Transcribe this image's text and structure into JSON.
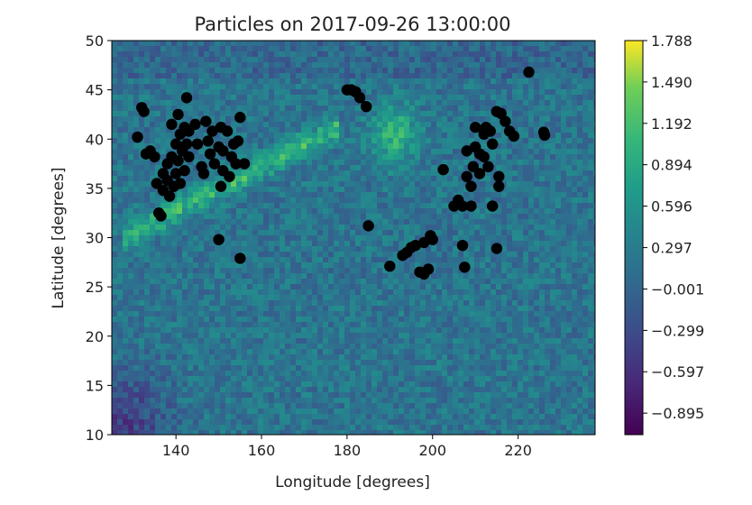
{
  "chart_data": {
    "type": "scatter",
    "title": "Particles on 2017-09-26 13:00:00",
    "xlabel": "Longitude [degrees]",
    "ylabel": "Latitude [degrees]",
    "xlim": [
      125,
      238
    ],
    "ylim": [
      10,
      50
    ],
    "x_ticks": [
      140,
      160,
      180,
      200,
      220
    ],
    "y_ticks": [
      10,
      15,
      20,
      25,
      30,
      35,
      40,
      45,
      50
    ],
    "background": {
      "type": "heatmap",
      "colormap": "viridis",
      "value_range": [
        -1.05,
        1.788
      ]
    },
    "colorbar": {
      "ticks": [
        "1.788",
        "1.490",
        "1.192",
        "0.894",
        "0.596",
        "0.297",
        "−0.001",
        "−0.299",
        "−0.597",
        "−0.895"
      ]
    },
    "marker_color": "#000000",
    "points": [
      [
        131,
        40.2
      ],
      [
        132,
        43.2
      ],
      [
        132.5,
        42.8
      ],
      [
        133,
        38.5
      ],
      [
        134,
        38.8
      ],
      [
        135,
        38.2
      ],
      [
        135.5,
        35.5
      ],
      [
        136,
        32.5
      ],
      [
        136.5,
        32.2
      ],
      [
        137,
        34.8
      ],
      [
        137,
        36.5
      ],
      [
        138,
        35.8
      ],
      [
        138,
        37.5
      ],
      [
        138.5,
        34.2
      ],
      [
        139,
        38.2
      ],
      [
        139,
        41.5
      ],
      [
        139.5,
        35.2
      ],
      [
        140,
        36.5
      ],
      [
        140,
        39.5
      ],
      [
        140.5,
        42.5
      ],
      [
        140.5,
        37.8
      ],
      [
        141,
        40.5
      ],
      [
        141,
        35.5
      ],
      [
        141.5,
        38.8
      ],
      [
        142,
        41.2
      ],
      [
        142,
        36.8
      ],
      [
        142.5,
        39.5
      ],
      [
        142.5,
        44.2
      ],
      [
        143,
        38.2
      ],
      [
        143,
        40.8
      ],
      [
        144.5,
        41.5
      ],
      [
        145,
        39.5
      ],
      [
        146,
        37.2
      ],
      [
        146.5,
        36.5
      ],
      [
        147,
        41.8
      ],
      [
        147.5,
        39.8
      ],
      [
        148,
        38.5
      ],
      [
        148.5,
        40.8
      ],
      [
        149,
        37.5
      ],
      [
        150,
        39.2
      ],
      [
        150.5,
        41.2
      ],
      [
        150,
        29.8
      ],
      [
        150.5,
        35.2
      ],
      [
        151,
        36.8
      ],
      [
        151,
        38.8
      ],
      [
        152,
        40.8
      ],
      [
        152.5,
        36.2
      ],
      [
        153,
        38.2
      ],
      [
        153.5,
        39.5
      ],
      [
        154,
        37.5
      ],
      [
        154.5,
        39.8
      ],
      [
        155,
        42.2
      ],
      [
        155,
        27.9
      ],
      [
        156,
        37.5
      ],
      [
        180,
        45
      ],
      [
        181,
        45
      ],
      [
        182,
        44.8
      ],
      [
        183,
        44.2
      ],
      [
        184.5,
        43.3
      ],
      [
        185,
        31.2
      ],
      [
        190,
        27.1
      ],
      [
        193,
        28.2
      ],
      [
        194,
        28.5
      ],
      [
        195,
        29
      ],
      [
        196,
        29.2
      ],
      [
        197,
        26.5
      ],
      [
        198,
        26.3
      ],
      [
        198,
        29.5
      ],
      [
        199,
        26.8
      ],
      [
        199.5,
        30.2
      ],
      [
        200,
        29.8
      ],
      [
        202.5,
        36.9
      ],
      [
        205,
        33.2
      ],
      [
        206,
        33.8
      ],
      [
        207,
        33.2
      ],
      [
        207,
        29.2
      ],
      [
        207.5,
        27
      ],
      [
        208,
        36.2
      ],
      [
        208,
        38.8
      ],
      [
        209,
        35.2
      ],
      [
        209,
        33.2
      ],
      [
        209.5,
        37.2
      ],
      [
        210,
        39.2
      ],
      [
        210,
        41.2
      ],
      [
        211,
        38.5
      ],
      [
        211,
        36.5
      ],
      [
        212,
        40.5
      ],
      [
        212,
        38.2
      ],
      [
        212.5,
        41.2
      ],
      [
        213,
        37.2
      ],
      [
        213.5,
        40.8
      ],
      [
        214,
        33.2
      ],
      [
        214,
        39.5
      ],
      [
        215,
        28.9
      ],
      [
        215,
        42.8
      ],
      [
        215.5,
        35.2
      ],
      [
        215.5,
        36.2
      ],
      [
        216,
        42.6
      ],
      [
        217,
        41.8
      ],
      [
        218,
        40.8
      ],
      [
        219,
        40.3
      ],
      [
        222.5,
        46.8
      ],
      [
        226,
        40.7
      ],
      [
        226.2,
        40.4
      ]
    ]
  }
}
